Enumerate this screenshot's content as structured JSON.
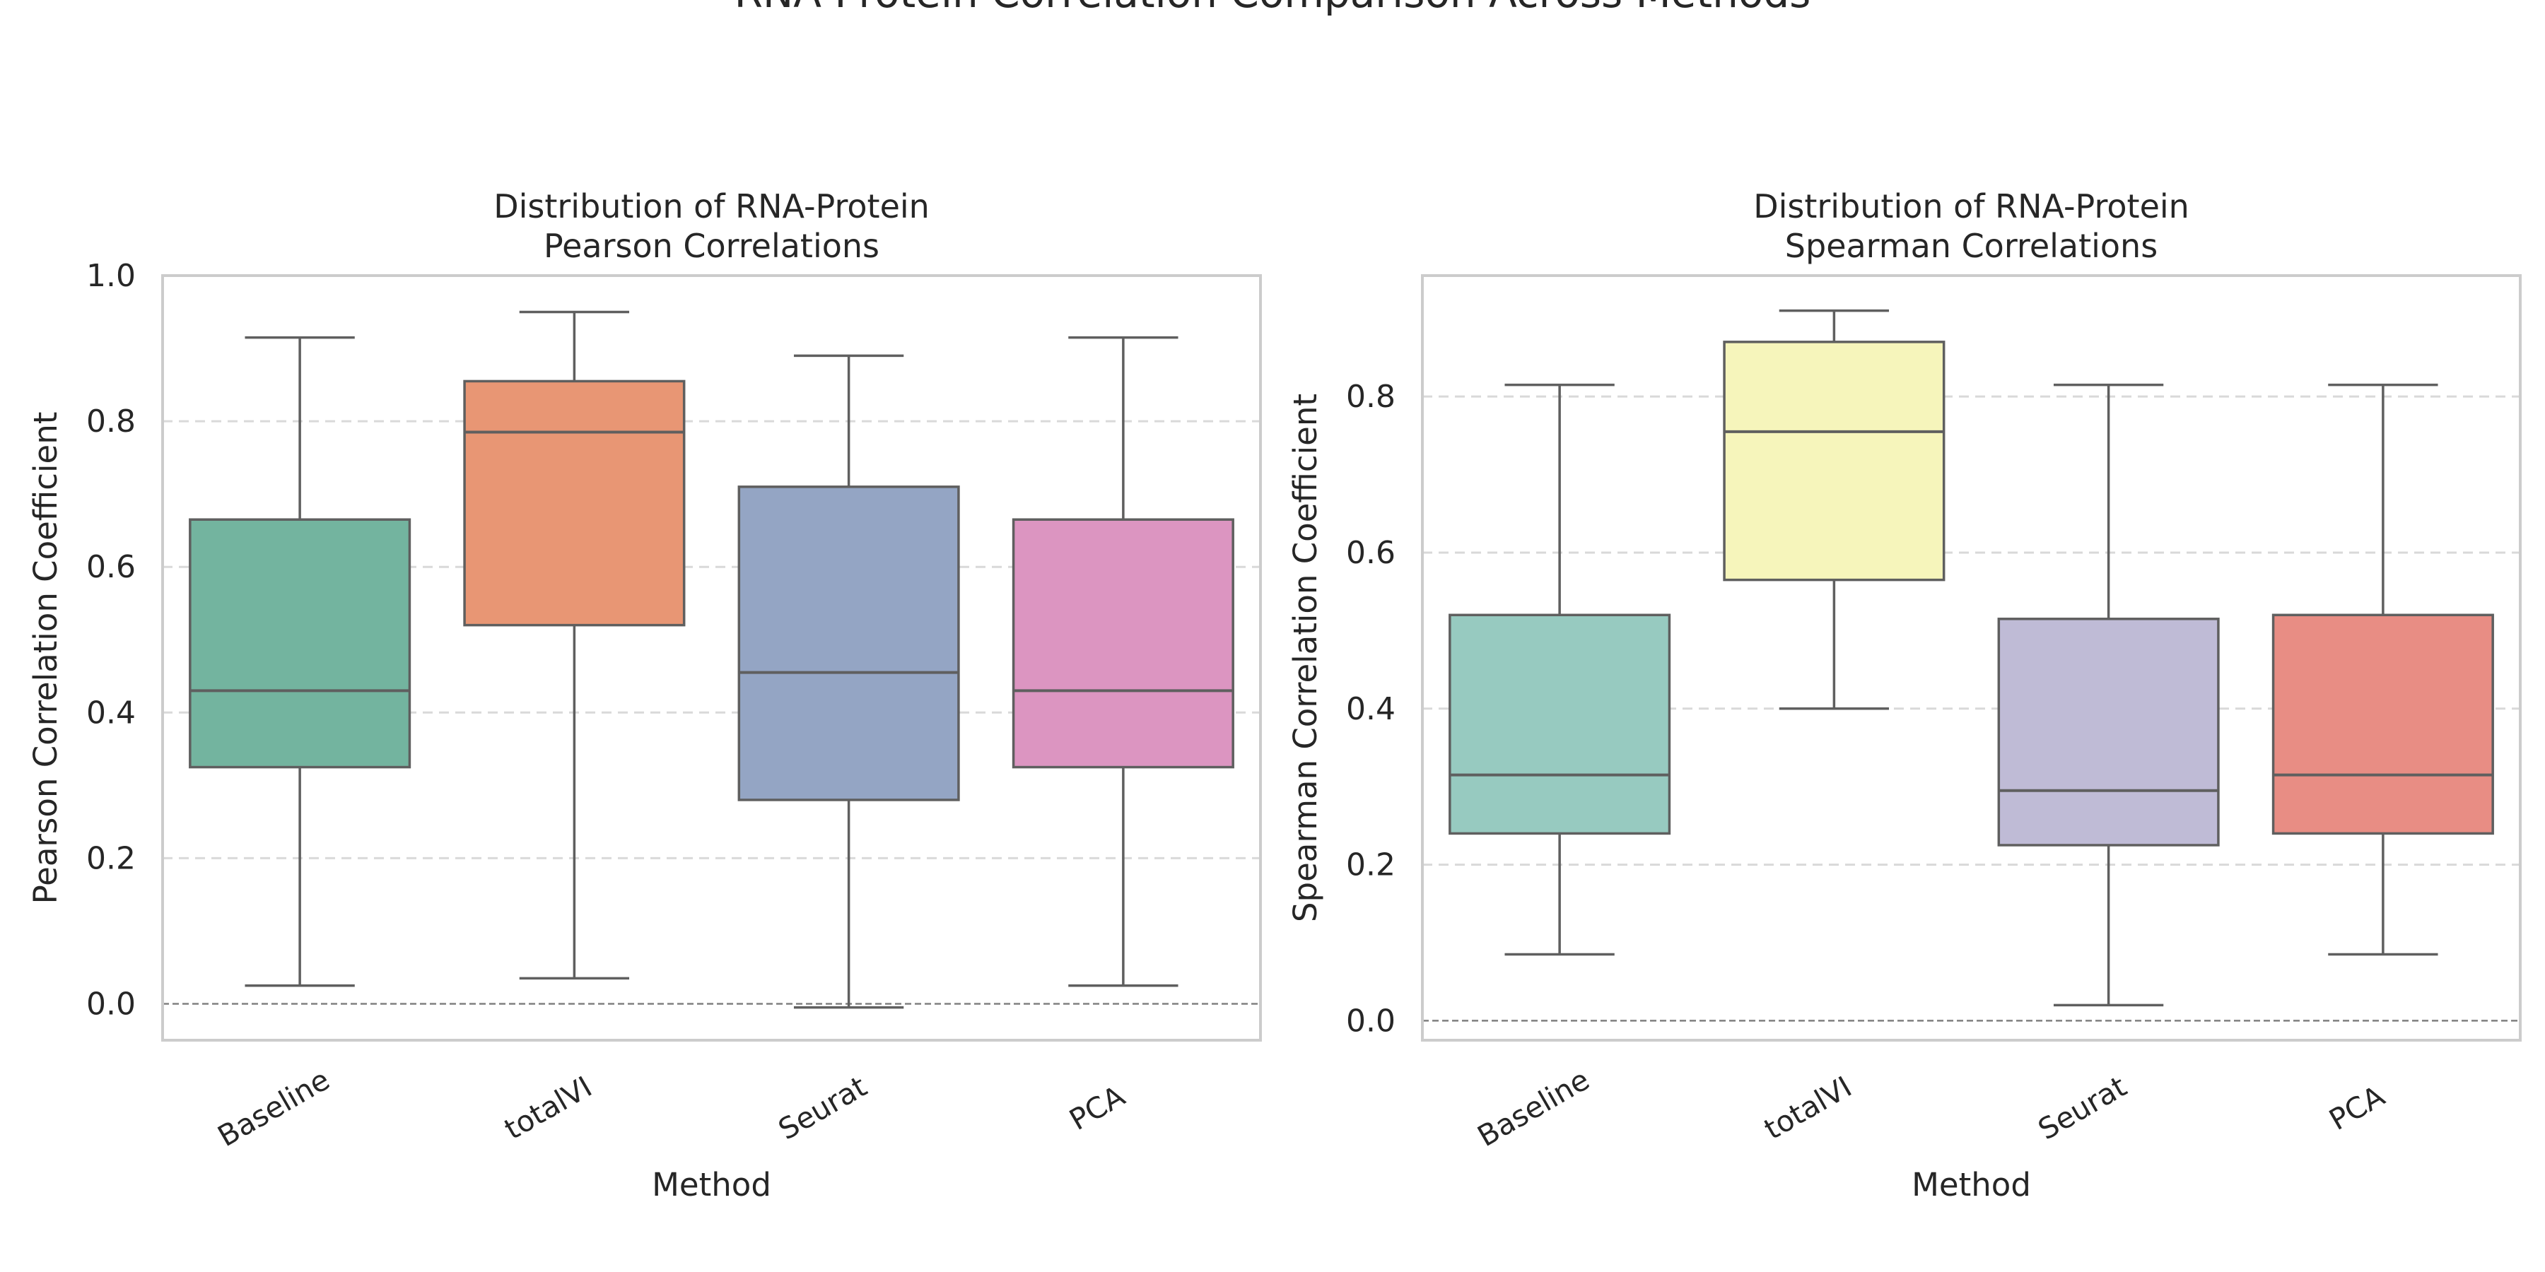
{
  "suptitle": "RNA Protein Correlation Comparison Across Methods",
  "chart_data": [
    {
      "type": "box",
      "title": "Distribution of RNA-Protein\nPearson Correlations",
      "xlabel": "Method",
      "ylabel": "Pearson Correlation Coefficient",
      "ylim": [
        -0.05,
        1.0
      ],
      "yticks": [
        "0.0",
        "0.2",
        "0.4",
        "0.6",
        "0.8",
        "1.0"
      ],
      "grid": "y-dashed",
      "reference_line": 0.0,
      "categories": [
        "Baseline",
        "totalVI",
        "Seurat",
        "PCA"
      ],
      "colors": [
        "#73b49f",
        "#e89674",
        "#94a5c4",
        "#dc95c1"
      ],
      "boxes": [
        {
          "min": 0.025,
          "q1": 0.325,
          "median": 0.43,
          "q3": 0.665,
          "max": 0.915
        },
        {
          "min": 0.035,
          "q1": 0.52,
          "median": 0.785,
          "q3": 0.855,
          "max": 0.95
        },
        {
          "min": -0.005,
          "q1": 0.28,
          "median": 0.455,
          "q3": 0.71,
          "max": 0.89
        },
        {
          "min": 0.025,
          "q1": 0.325,
          "median": 0.43,
          "q3": 0.665,
          "max": 0.915
        }
      ]
    },
    {
      "type": "box",
      "title": "Distribution of RNA-Protein\nSpearman Correlations",
      "xlabel": "Method",
      "ylabel": "Spearman Correlation Coefficient",
      "ylim": [
        -0.025,
        0.955
      ],
      "yticks": [
        "0.0",
        "0.2",
        "0.4",
        "0.6",
        "0.8"
      ],
      "grid": "y-dashed",
      "reference_line": 0.0,
      "categories": [
        "Baseline",
        "totalVI",
        "Seurat",
        "PCA"
      ],
      "colors": [
        "#97cac0",
        "#f6f5bb",
        "#bfbbd6",
        "#e88d84"
      ],
      "boxes": [
        {
          "min": 0.085,
          "q1": 0.24,
          "median": 0.315,
          "q3": 0.52,
          "max": 0.815
        },
        {
          "min": 0.4,
          "q1": 0.565,
          "median": 0.755,
          "q3": 0.87,
          "max": 0.91
        },
        {
          "min": 0.02,
          "q1": 0.225,
          "median": 0.295,
          "q3": 0.515,
          "max": 0.815
        },
        {
          "min": 0.085,
          "q1": 0.24,
          "median": 0.315,
          "q3": 0.52,
          "max": 0.815
        }
      ]
    }
  ]
}
